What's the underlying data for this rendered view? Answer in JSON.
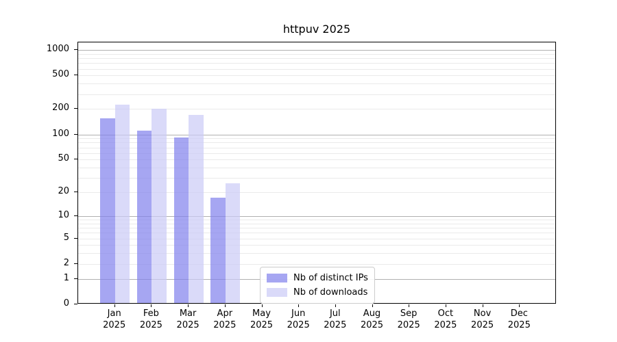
{
  "title": "httpuv 2025",
  "chart_data": {
    "type": "bar",
    "title": "httpuv 2025",
    "yscale": "log1p",
    "grid": true,
    "legend_position": "lower center-right inside plot",
    "categories": [
      "Jan 2025",
      "Feb 2025",
      "Mar 2025",
      "Apr 2025",
      "May 2025",
      "Jun 2025",
      "Jul 2025",
      "Aug 2025",
      "Sep 2025",
      "Oct 2025",
      "Nov 2025",
      "Dec 2025"
    ],
    "yticks": [
      0,
      1,
      2,
      5,
      10,
      20,
      50,
      100,
      200,
      500,
      1000
    ],
    "ylim": [
      0,
      1230
    ],
    "xlabel": "",
    "ylabel": "",
    "series": [
      {
        "name": "Nb of distinct IPs",
        "color": "#8080ed",
        "fill_alpha": 0.7,
        "values": [
          155,
          110,
          92,
          17,
          null,
          null,
          null,
          null,
          null,
          null,
          null,
          null
        ]
      },
      {
        "name": "Nb of downloads",
        "color": "#cacaf6",
        "fill_alpha": 0.7,
        "values": [
          225,
          200,
          170,
          26,
          null,
          null,
          null,
          null,
          null,
          null,
          null,
          null
        ]
      }
    ],
    "colors": {
      "major_grid": "#b0b0b0",
      "minor_grid": "#eaeaea",
      "axis": "#000000",
      "background": "#ffffff"
    }
  }
}
